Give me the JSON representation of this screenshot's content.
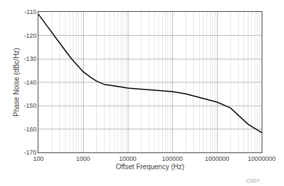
{
  "chart_data": {
    "type": "line",
    "xlabel": "Offset Frequency (Hz)",
    "ylabel": "Phase Noise (dBc/Hz)",
    "x": [
      100,
      130,
      170,
      220,
      300,
      400,
      550,
      750,
      1000,
      1500,
      2000,
      3000,
      5000,
      7000,
      10000,
      20000,
      50000,
      100000,
      200000,
      500000,
      1000000,
      2000000,
      5000000,
      10000000
    ],
    "values": [
      -111,
      -114,
      -117,
      -120,
      -123.5,
      -126.5,
      -130,
      -133,
      -135.5,
      -138,
      -139.5,
      -141,
      -141.5,
      -142,
      -142.5,
      -143,
      -143.5,
      -144,
      -145,
      -147,
      -148.5,
      -151,
      -158,
      -161.5
    ],
    "color": "#000000",
    "log": "x",
    "xlim": [
      100,
      10000000
    ],
    "xticks": [
      100,
      1000,
      10000,
      100000,
      1000000,
      10000000
    ],
    "ylim": [
      -170,
      -110
    ],
    "yticks": [
      -170,
      -160,
      -150,
      -140,
      -130,
      -120,
      -110
    ],
    "grid": true,
    "annotations": [
      "C007"
    ]
  }
}
